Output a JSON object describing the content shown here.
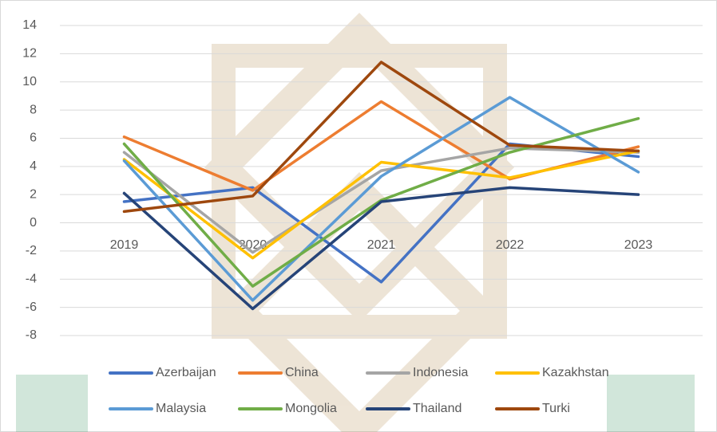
{
  "chart_data": {
    "type": "line",
    "categories": [
      "2019",
      "2020",
      "2021",
      "2022",
      "2023"
    ],
    "series": [
      {
        "name": "Azerbaijan",
        "color": "#4472c4",
        "values": [
          1.5,
          2.5,
          -4.2,
          5.6,
          4.7
        ]
      },
      {
        "name": "China",
        "color": "#ed7d31",
        "values": [
          6.1,
          2.3,
          8.6,
          3.1,
          5.4
        ]
      },
      {
        "name": "Indonesia",
        "color": "#a5a5a5",
        "values": [
          5.0,
          -2.1,
          3.7,
          5.3,
          5.0
        ]
      },
      {
        "name": "Kazakhstan",
        "color": "#ffc000",
        "values": [
          4.5,
          -2.5,
          4.3,
          3.2,
          5.1
        ]
      },
      {
        "name": "Malaysia",
        "color": "#5b9bd5",
        "values": [
          4.4,
          -5.5,
          3.3,
          8.9,
          3.6
        ]
      },
      {
        "name": "Mongolia",
        "color": "#70ad47",
        "values": [
          5.6,
          -4.5,
          1.6,
          5.0,
          7.4
        ]
      },
      {
        "name": "Thailand",
        "color": "#264478",
        "values": [
          2.1,
          -6.1,
          1.5,
          2.5,
          2.0
        ]
      },
      {
        "name": "Turki",
        "color": "#9e480e",
        "values": [
          0.8,
          1.9,
          11.4,
          5.5,
          5.1
        ]
      }
    ],
    "ylim": [
      -8,
      14
    ],
    "yticks": [
      -8,
      -6,
      -4,
      -2,
      0,
      2,
      4,
      6,
      8,
      10,
      12,
      14
    ],
    "grid": true,
    "legend": "bottom"
  }
}
